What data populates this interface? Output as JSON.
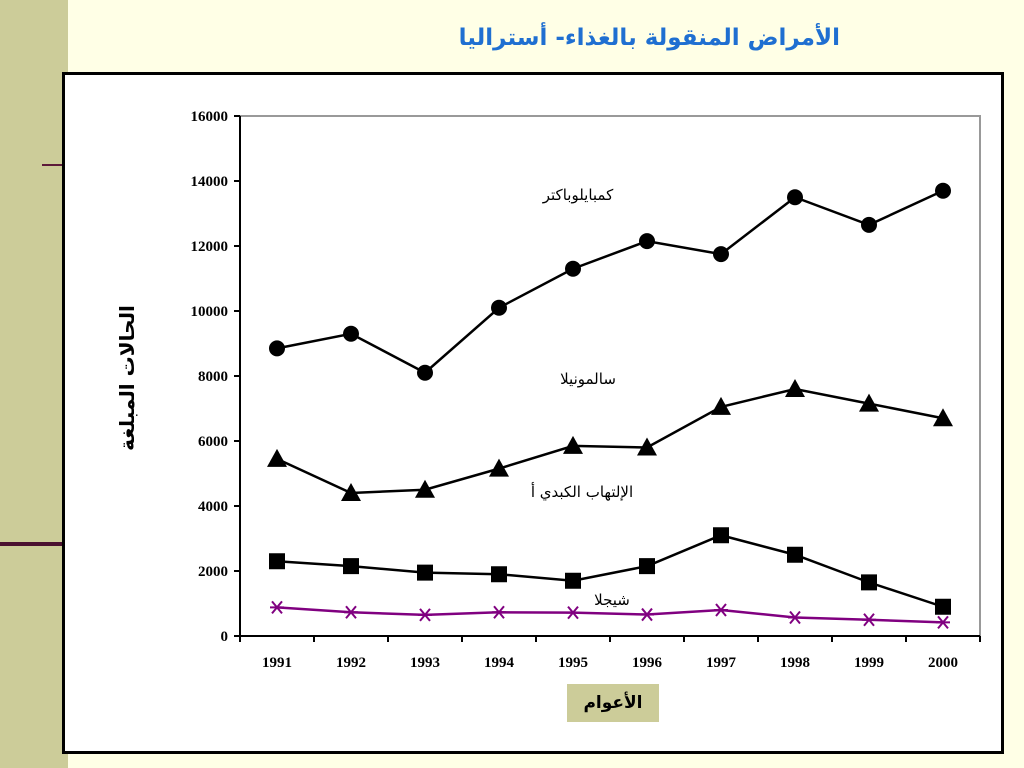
{
  "slide": {
    "title": "الأمراض المنقولة بالغذاء- أستراليا"
  },
  "colors": {
    "band": "#cccc99",
    "title": "#1f6fd1",
    "background": "#ffffe6",
    "shigella": "#800080"
  },
  "chart_data": {
    "type": "line",
    "title": "",
    "xlabel": "الأعوام",
    "ylabel": "الحالات المبلغة",
    "x": [
      1991,
      1992,
      1993,
      1994,
      1995,
      1996,
      1997,
      1998,
      1999,
      2000
    ],
    "ylim": [
      0,
      16000
    ],
    "yticks": [
      0,
      2000,
      4000,
      6000,
      8000,
      10000,
      12000,
      14000,
      16000
    ],
    "grid": false,
    "legend": "inline labels",
    "series": [
      {
        "name": "كمبايلوباكتر",
        "marker": "circle",
        "color": "#000000",
        "values": [
          8850,
          9300,
          8100,
          10100,
          11300,
          12150,
          11750,
          13500,
          12650,
          13700
        ]
      },
      {
        "name": "سالمونيلا",
        "marker": "triangle",
        "color": "#000000",
        "values": [
          5450,
          4400,
          4500,
          5150,
          5850,
          5800,
          7050,
          7600,
          7150,
          6700
        ]
      },
      {
        "name": "الإلتهاب الكبدي أ",
        "marker": "square",
        "color": "#000000",
        "values": [
          2300,
          2150,
          1950,
          1900,
          1700,
          2150,
          3100,
          2500,
          1650,
          900
        ]
      },
      {
        "name": "شيجلا",
        "marker": "asterisk",
        "color": "#800080",
        "values": [
          880,
          730,
          650,
          730,
          720,
          660,
          800,
          570,
          500,
          420
        ]
      }
    ]
  }
}
